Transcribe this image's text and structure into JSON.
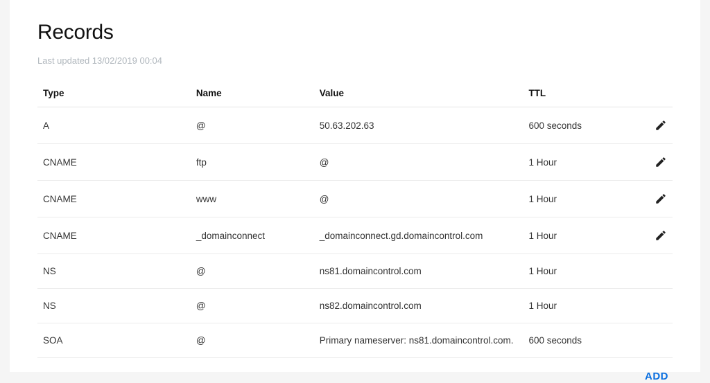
{
  "header": {
    "title": "Records",
    "last_updated": "Last updated 13/02/2019 00:04"
  },
  "table": {
    "columns": [
      "Type",
      "Name",
      "Value",
      "TTL"
    ],
    "rows": [
      {
        "type": "A",
        "name": "@",
        "value": "50.63.202.63",
        "ttl": "600 seconds",
        "editable": true
      },
      {
        "type": "CNAME",
        "name": "ftp",
        "value": "@",
        "ttl": "1 Hour",
        "editable": true
      },
      {
        "type": "CNAME",
        "name": "www",
        "value": "@",
        "ttl": "1 Hour",
        "editable": true
      },
      {
        "type": "CNAME",
        "name": "_domainconnect",
        "value": "_domainconnect.gd.domaincontrol.com",
        "ttl": "1 Hour",
        "editable": true
      },
      {
        "type": "NS",
        "name": "@",
        "value": "ns81.domaincontrol.com",
        "ttl": "1 Hour",
        "editable": false
      },
      {
        "type": "NS",
        "name": "@",
        "value": "ns82.domaincontrol.com",
        "ttl": "1 Hour",
        "editable": false
      },
      {
        "type": "SOA",
        "name": "@",
        "value": "Primary nameserver: ns81.domaincontrol.com.",
        "ttl": "600 seconds",
        "editable": false
      }
    ]
  },
  "actions": {
    "add_label": "ADD"
  },
  "colors": {
    "background": "#ffffff",
    "text": "#111111",
    "muted": "#b0b7bd",
    "border": "#ececec",
    "accent": "#0a6fe0",
    "icon": "#222222"
  }
}
